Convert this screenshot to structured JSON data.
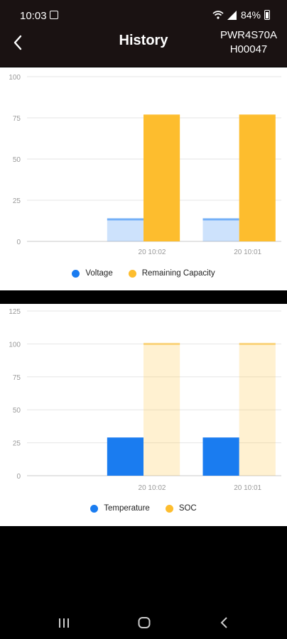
{
  "status_bar": {
    "time": "10:03",
    "battery": "84%"
  },
  "header": {
    "title": "History",
    "device_line1": "PWR4S70A",
    "device_line2": "H00047"
  },
  "colors": {
    "blue": "#1a7cf0",
    "yellow": "#fdbd2e"
  },
  "chart_data": [
    {
      "type": "bar",
      "categories": [
        "20 10:02",
        "20 10:01"
      ],
      "xlim": [
        -1.5,
        1.5
      ],
      "ylim": [
        0,
        100
      ],
      "yticks": [
        0,
        25,
        50,
        75,
        100
      ],
      "series": [
        {
          "name": "Voltage",
          "color": "#1a7cf0",
          "values": [
            13.4,
            13.4
          ]
        },
        {
          "name": "Remaining Capacity",
          "color": "#fdbd2e",
          "values": [
            77,
            77
          ]
        }
      ],
      "grid": true,
      "legend": "bottom"
    },
    {
      "type": "bar",
      "categories": [
        "20 10:02",
        "20 10:01"
      ],
      "xlim": [
        -1.5,
        1.5
      ],
      "ylim": [
        0,
        125
      ],
      "yticks": [
        0,
        25,
        50,
        75,
        100,
        125
      ],
      "series": [
        {
          "name": "Temperature",
          "color": "#1a7cf0",
          "values": [
            29,
            29
          ]
        },
        {
          "name": "SOC",
          "color": "#fdbd2e",
          "values": [
            100,
            100
          ]
        }
      ],
      "grid": true,
      "legend": "bottom"
    }
  ]
}
